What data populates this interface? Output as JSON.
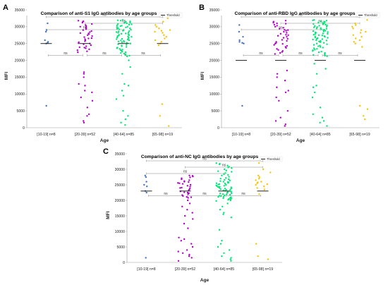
{
  "chart_data": [
    {
      "type": "scatter",
      "panel": "A",
      "title": "Comparison of anti-S1 IgG antibodies by age groups",
      "xlabel": "Age",
      "ylabel": "MFI",
      "ylim": [
        0,
        35000
      ],
      "yticks": [
        0,
        5000,
        10000,
        15000,
        20000,
        25000,
        30000,
        35000
      ],
      "categories": [
        "[10-19] n=8",
        "[20-39] n=52",
        "[40-64] n=85",
        "[65-98] n=19"
      ],
      "legend": {
        "label": "Threshold",
        "placement": "top-right"
      },
      "threshold": [
        25000,
        25000,
        25000,
        25000
      ],
      "comparisons": [
        {
          "from": 0,
          "to": 1,
          "label": "ns"
        },
        {
          "from": 1,
          "to": 2,
          "label": "ns"
        },
        {
          "from": 2,
          "to": 3,
          "label": "ns"
        },
        {
          "from": 0,
          "to": 2,
          "label": "ns"
        },
        {
          "from": 1,
          "to": 3,
          "label": "ns"
        },
        {
          "from": 0,
          "to": 3,
          "label": "ns"
        }
      ],
      "colors": [
        "#4472c4",
        "#b000c8",
        "#00e676",
        "#f5c400"
      ],
      "series": [
        {
          "values": [
            31000,
            29000,
            28500,
            26000,
            25500,
            25200,
            25000,
            6500
          ]
        },
        {
          "values": [
            31800,
            31500,
            31200,
            30800,
            30500,
            30200,
            29900,
            29600,
            29300,
            29000,
            28700,
            28400,
            28100,
            27800,
            27500,
            27200,
            26900,
            26600,
            26300,
            26000,
            25700,
            25400,
            25100,
            24800,
            24500,
            24200,
            23900,
            23600,
            23300,
            23000,
            22700,
            22400,
            31600,
            30000,
            28000,
            26500,
            25000,
            23800,
            16500,
            16000,
            15000,
            13000,
            12500,
            11000,
            10500,
            9000,
            8000,
            6000,
            4000,
            3500,
            2000,
            1500
          ]
        },
        {
          "values": [
            32000,
            31800,
            31600,
            31400,
            31200,
            31000,
            30800,
            30600,
            30400,
            30200,
            30000,
            29800,
            29600,
            29400,
            29200,
            29000,
            28800,
            28600,
            28400,
            28200,
            28000,
            27800,
            27600,
            27400,
            27200,
            27000,
            26800,
            26600,
            26400,
            26200,
            26000,
            25800,
            25600,
            25400,
            25200,
            25000,
            24800,
            24600,
            24400,
            24200,
            24000,
            23800,
            23600,
            23400,
            23200,
            23000,
            22800,
            22600,
            22400,
            22200,
            22000,
            21800,
            21600,
            21400,
            21200,
            31900,
            31500,
            31100,
            30700,
            30300,
            29900,
            29500,
            29100,
            28700,
            28300,
            27900,
            27500,
            27100,
            26700,
            26300,
            25900,
            25500,
            20000,
            18000,
            16000,
            13000,
            12500,
            11000,
            9500,
            8500,
            5000,
            3500,
            2500,
            1500,
            800
          ]
        },
        {
          "values": [
            32500,
            31500,
            30500,
            30000,
            29500,
            29000,
            28800,
            28500,
            28200,
            27500,
            27000,
            26500,
            26000,
            25500,
            25000,
            24500,
            7000,
            3500,
            500
          ]
        }
      ]
    },
    {
      "type": "scatter",
      "panel": "B",
      "title": "Comparison of anti-RBD IgG antibodies by age groups",
      "xlabel": "Age",
      "ylabel": "MFI",
      "ylim": [
        0,
        35000
      ],
      "yticks": [
        0,
        5000,
        10000,
        15000,
        20000,
        25000,
        30000,
        35000
      ],
      "categories": [
        "[10-19] n=8",
        "[20-39] n=52",
        "[40-64] n=85",
        "[65-98] n=19"
      ],
      "legend": {
        "label": "Threshold",
        "placement": "top-right"
      },
      "threshold": [
        20000,
        20000,
        20000,
        20000
      ],
      "comparisons": [
        {
          "from": 0,
          "to": 1,
          "label": "ns"
        },
        {
          "from": 1,
          "to": 2,
          "label": "ns"
        },
        {
          "from": 2,
          "to": 3,
          "label": "ns"
        },
        {
          "from": 0,
          "to": 2,
          "label": "ns"
        },
        {
          "from": 1,
          "to": 3,
          "label": "ns"
        },
        {
          "from": 0,
          "to": 3,
          "label": "ns"
        }
      ],
      "colors": [
        "#4472c4",
        "#b000c8",
        "#00e676",
        "#f5c400"
      ],
      "series": [
        {
          "values": [
            30500,
            28500,
            27000,
            26000,
            25500,
            25200,
            25000,
            6500
          ]
        },
        {
          "values": [
            31800,
            31500,
            31200,
            30900,
            30600,
            30300,
            30000,
            29700,
            29400,
            29100,
            28800,
            28500,
            28200,
            27900,
            27600,
            27300,
            27000,
            26700,
            26400,
            26100,
            25800,
            25500,
            25200,
            24900,
            24600,
            24300,
            24000,
            23700,
            23400,
            23100,
            22800,
            22500,
            22200,
            21900,
            31000,
            29000,
            27500,
            25000,
            17000,
            16000,
            15000,
            14000,
            12000,
            11000,
            10500,
            9000,
            8000,
            5000,
            3000,
            2000,
            1000,
            500
          ]
        },
        {
          "values": [
            32000,
            31800,
            31600,
            31400,
            31200,
            31000,
            30800,
            30600,
            30400,
            30200,
            30000,
            29800,
            29600,
            29400,
            29200,
            29000,
            28800,
            28600,
            28400,
            28200,
            28000,
            27800,
            27600,
            27400,
            27200,
            27000,
            26800,
            26600,
            26400,
            26200,
            26000,
            25800,
            25600,
            25400,
            25200,
            25000,
            24800,
            24600,
            24400,
            24200,
            24000,
            23800,
            23600,
            23400,
            23200,
            23000,
            22800,
            22600,
            22400,
            22200,
            22000,
            21800,
            21600,
            21400,
            21200,
            31900,
            31500,
            31100,
            30700,
            30300,
            29900,
            29500,
            29100,
            28700,
            28300,
            27900,
            27500,
            27100,
            26700,
            26300,
            25900,
            25500,
            19000,
            17500,
            16000,
            12500,
            12000,
            10500,
            9000,
            6000,
            4000,
            3000,
            2000,
            1500,
            500
          ]
        },
        {
          "values": [
            32000,
            31000,
            30500,
            30000,
            29500,
            29000,
            28500,
            28200,
            27500,
            27000,
            26500,
            26000,
            25500,
            25000,
            24000,
            6500,
            5500,
            3500,
            2500
          ]
        }
      ]
    },
    {
      "type": "scatter",
      "panel": "C",
      "title": "Comparison of anti-NC IgG antibodies by age groups",
      "xlabel": "Age",
      "ylabel": "MFI",
      "ylim": [
        0,
        35000
      ],
      "yticks": [
        0,
        5000,
        10000,
        15000,
        20000,
        25000,
        30000,
        35000
      ],
      "categories": [
        "[10-19] n=8",
        "[20-39] n=52",
        "[40-64] n=85",
        "[65-98] n=19"
      ],
      "legend": {
        "label": "Threshold",
        "placement": "top-right"
      },
      "threshold": [
        23000,
        23000,
        23000,
        23000
      ],
      "comparisons": [
        {
          "from": 0,
          "to": 1,
          "label": "ns"
        },
        {
          "from": 1,
          "to": 2,
          "label": "ns"
        },
        {
          "from": 2,
          "to": 3,
          "label": "ns"
        },
        {
          "from": 0,
          "to": 2,
          "label": "ns"
        },
        {
          "from": 1,
          "to": 3,
          "label": "ns"
        },
        {
          "from": 0,
          "to": 3,
          "label": "ns"
        }
      ],
      "colors": [
        "#4472c4",
        "#b000c8",
        "#00e676",
        "#f5c400"
      ],
      "series": [
        {
          "values": [
            28000,
            27500,
            26000,
            25000,
            24500,
            23000,
            22500,
            1500
          ]
        },
        {
          "values": [
            28000,
            27700,
            27400,
            27100,
            26800,
            26500,
            26200,
            25900,
            25600,
            25300,
            25000,
            24700,
            24400,
            24100,
            23800,
            23500,
            23200,
            22900,
            22600,
            22300,
            22000,
            21700,
            21400,
            21100,
            20800,
            27900,
            26000,
            25500,
            24000,
            22500,
            21000,
            20000,
            19000,
            18000,
            17000,
            16000,
            15000,
            14000,
            12500,
            11000,
            8000,
            7500,
            7000,
            6000,
            5000,
            4000,
            3500,
            3000,
            2500,
            2000,
            1500,
            500
          ]
        },
        {
          "values": [
            32000,
            31600,
            31200,
            30800,
            30400,
            30000,
            29600,
            29200,
            28800,
            28400,
            28000,
            27600,
            27200,
            26800,
            26400,
            26000,
            25800,
            25600,
            25400,
            25200,
            25000,
            24800,
            24600,
            24400,
            24200,
            24000,
            23800,
            23600,
            23400,
            23200,
            23000,
            22800,
            22600,
            22400,
            22200,
            22000,
            21800,
            21600,
            21400,
            21200,
            21000,
            20800,
            20600,
            20400,
            20200,
            20000,
            31800,
            30600,
            29400,
            28200,
            27000,
            26600,
            26200,
            25900,
            25500,
            25100,
            24700,
            24300,
            23900,
            23500,
            23100,
            22700,
            22300,
            21900,
            21500,
            21100,
            20700,
            20300,
            19800,
            19000,
            18000,
            17000,
            16000,
            15500,
            14500,
            10500,
            7000,
            6000,
            5000,
            4000,
            3000,
            2000,
            1500,
            1000,
            500
          ]
        },
        {
          "values": [
            32000,
            30000,
            29000,
            28000,
            27500,
            27000,
            26500,
            26000,
            25800,
            25500,
            25200,
            25000,
            24500,
            24000,
            23500,
            22000,
            6000,
            2000,
            1000
          ]
        }
      ]
    }
  ]
}
